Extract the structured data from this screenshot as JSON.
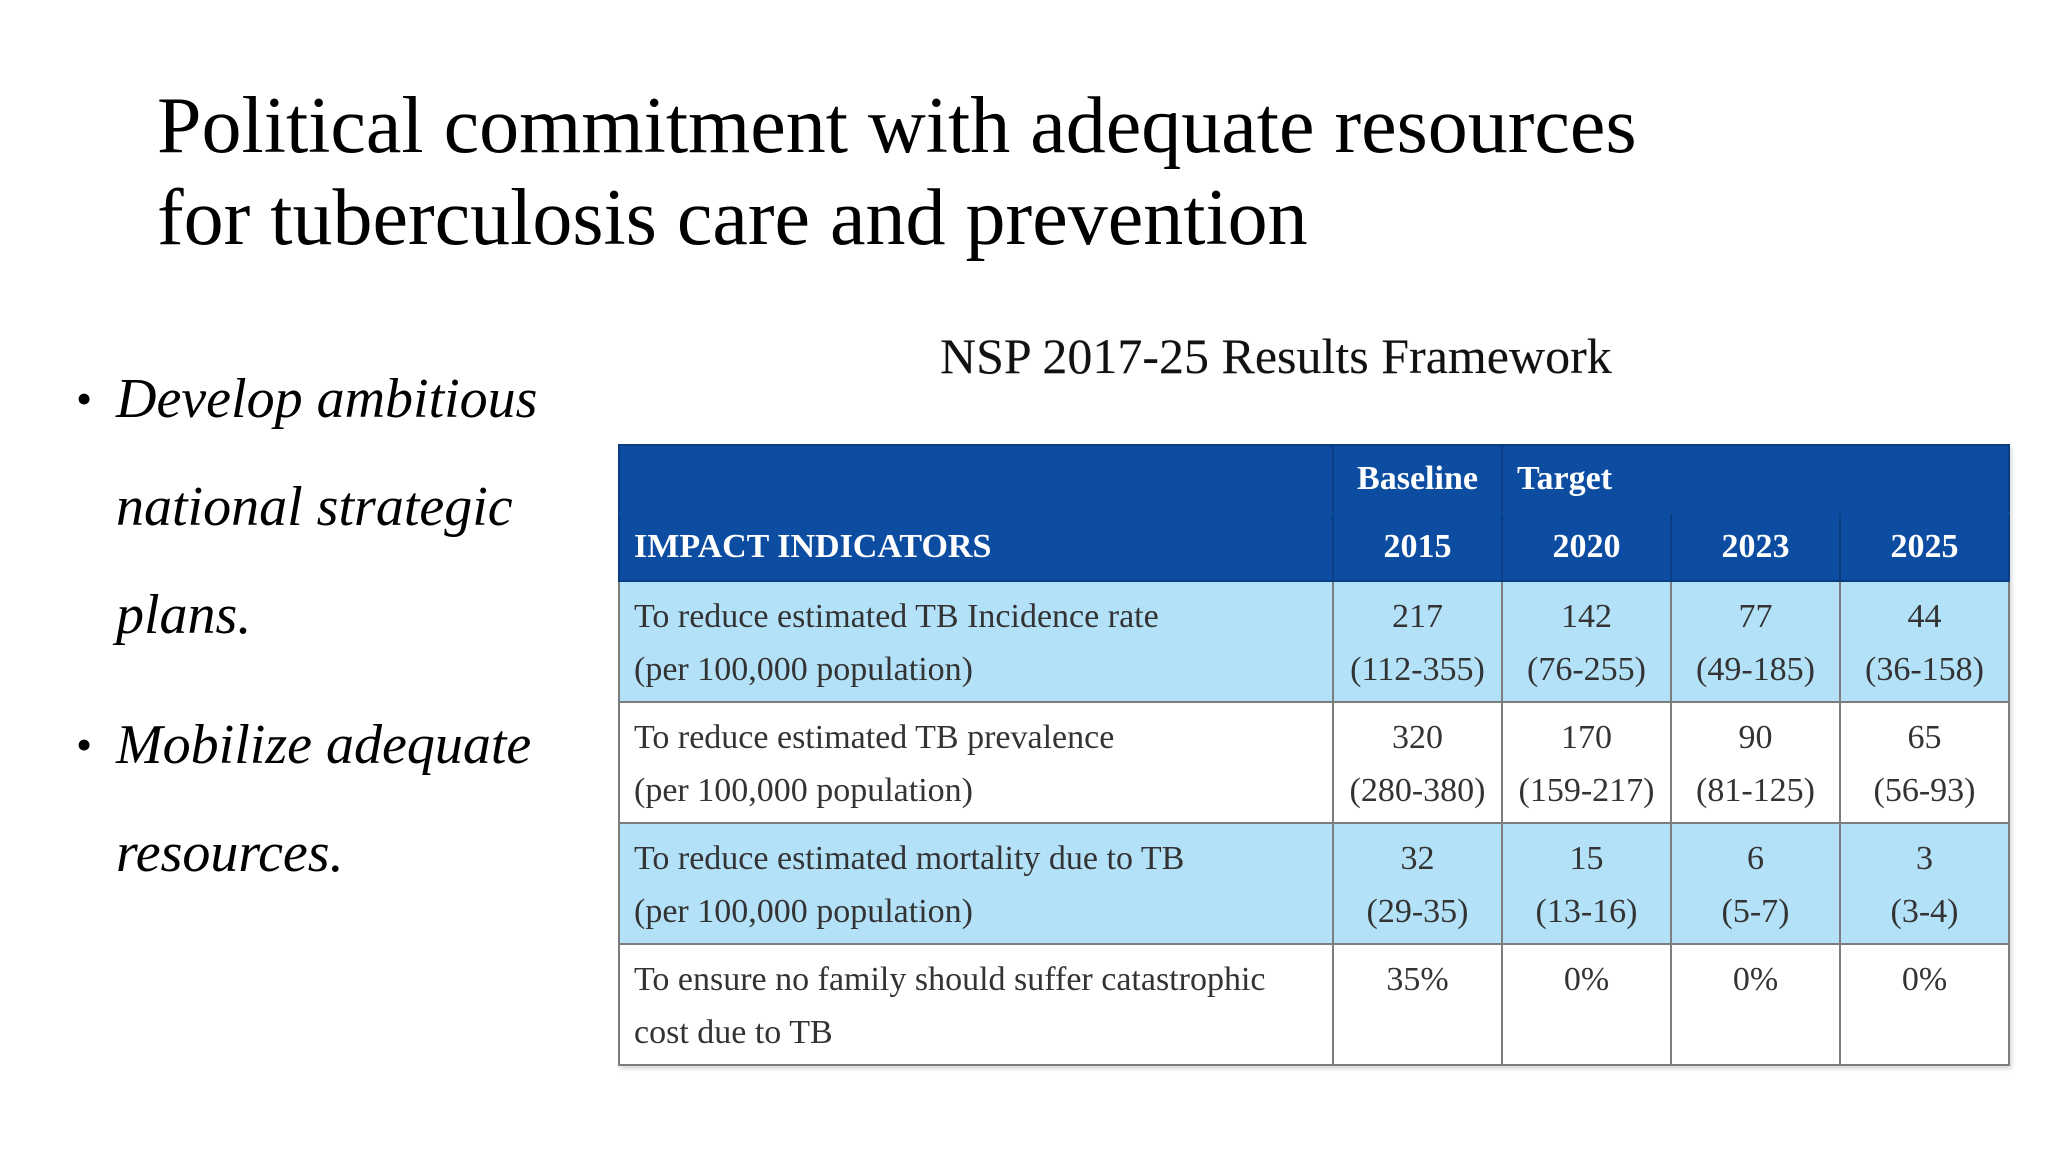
{
  "slide": {
    "title_lines": [
      "Political commitment with adequate resources",
      "for tuberculosis care and prevention"
    ],
    "bullets": [
      {
        "marker": "•",
        "lines": [
          "Develop ambitious",
          "national strategic",
          "plans."
        ]
      },
      {
        "marker": "•",
        "lines": [
          "Mobilize adequate",
          "resources."
        ]
      }
    ]
  },
  "table": {
    "caption": "NSP 2017-25 Results Framework",
    "header_row_1": {
      "indicator": "",
      "baseline": "Baseline",
      "target": "Target"
    },
    "header_row_2": {
      "indicator": "IMPACT INDICATORS",
      "years": [
        "2015",
        "2020",
        "2023",
        "2025"
      ]
    },
    "rows": [
      {
        "indicator_lines": [
          "To reduce estimated TB Incidence rate",
          "(per 100,000 population)"
        ],
        "cells": [
          {
            "value": "217",
            "range": "(112-355)"
          },
          {
            "value": "142",
            "range": "(76-255)"
          },
          {
            "value": "77",
            "range": "(49-185)"
          },
          {
            "value": "44",
            "range": "(36-158)"
          }
        ]
      },
      {
        "indicator_lines": [
          "To reduce estimated TB prevalence",
          "(per 100,000 population)"
        ],
        "cells": [
          {
            "value": "320",
            "range": "(280-380)"
          },
          {
            "value": "170",
            "range": "(159-217)"
          },
          {
            "value": "90",
            "range": "(81-125)"
          },
          {
            "value": "65",
            "range": "(56-93)"
          }
        ]
      },
      {
        "indicator_lines": [
          "To reduce estimated mortality due to TB",
          "(per 100,000 population)"
        ],
        "cells": [
          {
            "value": "32",
            "range": "(29-35)"
          },
          {
            "value": "15",
            "range": "(13-16)"
          },
          {
            "value": "6",
            "range": "(5-7)"
          },
          {
            "value": "3",
            "range": "(3-4)"
          }
        ]
      },
      {
        "indicator_lines": [
          "To ensure no family should suffer catastrophic",
          "cost due to TB"
        ],
        "cells": [
          {
            "value": "35%",
            "range": ""
          },
          {
            "value": "0%",
            "range": ""
          },
          {
            "value": "0%",
            "range": ""
          },
          {
            "value": "0%",
            "range": ""
          }
        ]
      }
    ]
  },
  "colors": {
    "header_blue": "#0c4da2",
    "row_light_blue": "#b3e1f7",
    "grid_gray": "#7d7d7d"
  }
}
